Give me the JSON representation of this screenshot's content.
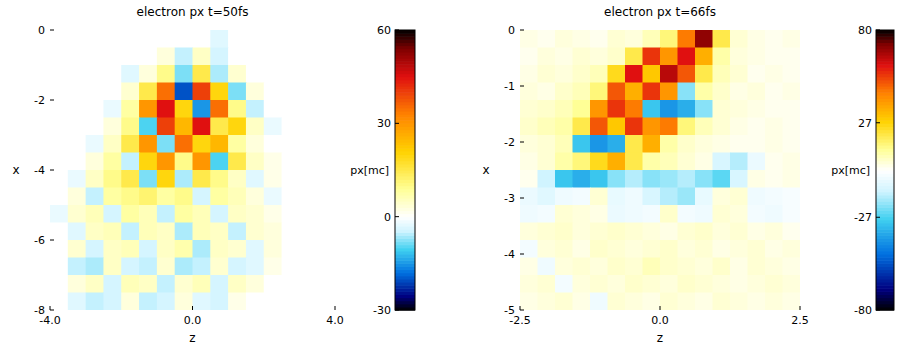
{
  "chart_data": [
    {
      "type": "heatmap",
      "title": "electron px t=50fs",
      "x_label": "z",
      "y_label": "x",
      "xlim": [
        -4,
        4
      ],
      "ylim": [
        -8,
        0
      ],
      "xticks": [
        {
          "value": -4,
          "label": "-4.0"
        },
        {
          "value": 0,
          "label": "0.0"
        },
        {
          "value": 4,
          "label": "4.0"
        }
      ],
      "yticks": [
        0,
        -2,
        -4,
        -6,
        -8
      ],
      "colorbar": {
        "label": "px[mc]",
        "range": [
          -30,
          60
        ],
        "ticks": [
          60,
          30,
          0,
          -30
        ]
      },
      "cells": [
        [
          0,
          0,
          0,
          0,
          0,
          0,
          0,
          0,
          0,
          -3,
          0,
          0,
          0,
          0,
          0,
          0
        ],
        [
          0,
          0,
          0,
          0,
          0,
          0,
          3,
          -5,
          5,
          -4,
          0,
          0,
          0,
          0,
          0,
          0
        ],
        [
          0,
          0,
          0,
          0,
          -3,
          3,
          10,
          -8,
          15,
          -6,
          4,
          0,
          0,
          0,
          0,
          0
        ],
        [
          0,
          0,
          0,
          0,
          4,
          15,
          35,
          -20,
          40,
          20,
          -8,
          3,
          0,
          0,
          0,
          0
        ],
        [
          0,
          0,
          0,
          -2,
          8,
          30,
          45,
          20,
          -15,
          35,
          10,
          -5,
          0,
          0,
          0,
          0
        ],
        [
          0,
          0,
          0,
          3,
          10,
          -10,
          40,
          25,
          45,
          15,
          20,
          5,
          -2,
          0,
          0,
          0
        ],
        [
          0,
          0,
          -2,
          5,
          15,
          30,
          -8,
          35,
          20,
          25,
          8,
          3,
          0,
          0,
          0,
          0
        ],
        [
          0,
          0,
          3,
          8,
          -5,
          20,
          30,
          10,
          30,
          -10,
          15,
          5,
          2,
          0,
          0,
          0
        ],
        [
          0,
          -2,
          5,
          10,
          15,
          -8,
          20,
          -6,
          15,
          10,
          5,
          -3,
          2,
          0,
          0,
          0
        ],
        [
          0,
          3,
          -5,
          8,
          10,
          12,
          8,
          10,
          -4,
          8,
          6,
          3,
          -2,
          0,
          0,
          0
        ],
        [
          -2,
          4,
          6,
          -4,
          8,
          6,
          -5,
          8,
          6,
          -4,
          5,
          4,
          2,
          0,
          0,
          0
        ],
        [
          0,
          -3,
          5,
          6,
          -5,
          6,
          5,
          -6,
          6,
          5,
          -5,
          4,
          3,
          0,
          0,
          0
        ],
        [
          0,
          4,
          -4,
          5,
          6,
          -4,
          5,
          7,
          -6,
          5,
          4,
          -3,
          3,
          0,
          0,
          0
        ],
        [
          0,
          -5,
          -6,
          5,
          -4,
          -5,
          4,
          -6,
          -5,
          4,
          -4,
          -3,
          2,
          0,
          0,
          0
        ],
        [
          0,
          3,
          5,
          -4,
          6,
          5,
          -5,
          4,
          6,
          -4,
          5,
          3,
          0,
          0,
          0,
          0
        ],
        [
          0,
          -3,
          -5,
          -4,
          3,
          -5,
          -4,
          3,
          -3,
          -4,
          2,
          0,
          0,
          0,
          0,
          0
        ]
      ]
    },
    {
      "type": "heatmap",
      "title": "electron px t=66fs",
      "x_label": "z",
      "y_label": "x",
      "xlim": [
        -2.5,
        2.5
      ],
      "ylim": [
        -5,
        0
      ],
      "xticks": [
        {
          "value": -2.5,
          "label": "-2.5"
        },
        {
          "value": 0,
          "label": "0.0"
        },
        {
          "value": 2.5,
          "label": "2.5"
        }
      ],
      "yticks": [
        0,
        -1,
        -2,
        -3,
        -4,
        -5
      ],
      "colorbar": {
        "label": "px[mc]",
        "range": [
          -80,
          80
        ],
        "ticks": [
          80,
          27,
          -27,
          -80
        ]
      },
      "cells": [
        [
          3,
          2,
          4,
          3,
          2,
          5,
          4,
          8,
          15,
          45,
          70,
          20,
          5,
          3,
          2,
          3
        ],
        [
          2,
          4,
          3,
          5,
          4,
          6,
          20,
          55,
          40,
          60,
          35,
          10,
          4,
          3,
          2,
          2
        ],
        [
          3,
          5,
          4,
          6,
          8,
          25,
          60,
          30,
          65,
          50,
          20,
          8,
          5,
          2,
          3,
          2
        ],
        [
          4,
          3,
          6,
          8,
          15,
          50,
          35,
          55,
          40,
          -20,
          10,
          6,
          3,
          4,
          2,
          3
        ],
        [
          5,
          6,
          8,
          12,
          40,
          55,
          45,
          -30,
          -40,
          -35,
          -20,
          5,
          4,
          3,
          2,
          2
        ],
        [
          6,
          8,
          10,
          20,
          50,
          30,
          55,
          40,
          45,
          15,
          8,
          5,
          3,
          2,
          3,
          2
        ],
        [
          4,
          5,
          8,
          -30,
          -40,
          -35,
          20,
          35,
          10,
          6,
          4,
          3,
          2,
          2,
          3,
          2
        ],
        [
          3,
          5,
          10,
          15,
          25,
          35,
          20,
          10,
          8,
          5,
          3,
          -10,
          -15,
          -5,
          2,
          3
        ],
        [
          2,
          -12,
          -30,
          -35,
          -30,
          -20,
          -15,
          -20,
          -18,
          -15,
          -20,
          -25,
          -10,
          3,
          2,
          3
        ],
        [
          -5,
          -8,
          -4,
          -3,
          5,
          -6,
          -4,
          -10,
          -15,
          -18,
          -6,
          4,
          5,
          -4,
          -3,
          -2
        ],
        [
          -4,
          -3,
          5,
          4,
          3,
          -5,
          -4,
          -3,
          6,
          -3,
          -4,
          5,
          4,
          -3,
          -4,
          -2
        ],
        [
          4,
          5,
          6,
          4,
          5,
          6,
          5,
          4,
          3,
          5,
          6,
          4,
          5,
          3,
          4,
          2
        ],
        [
          -3,
          4,
          5,
          3,
          6,
          5,
          4,
          5,
          6,
          4,
          5,
          3,
          4,
          5,
          3,
          4
        ],
        [
          3,
          -4,
          4,
          5,
          4,
          6,
          5,
          8,
          6,
          5,
          4,
          6,
          3,
          5,
          4,
          3
        ],
        [
          4,
          5,
          -3,
          4,
          5,
          4,
          6,
          5,
          4,
          6,
          5,
          4,
          3,
          4,
          5,
          4
        ],
        [
          3,
          4,
          5,
          3,
          -4,
          5,
          4,
          3,
          5,
          4,
          3,
          5,
          4,
          3,
          4,
          3
        ]
      ]
    }
  ]
}
